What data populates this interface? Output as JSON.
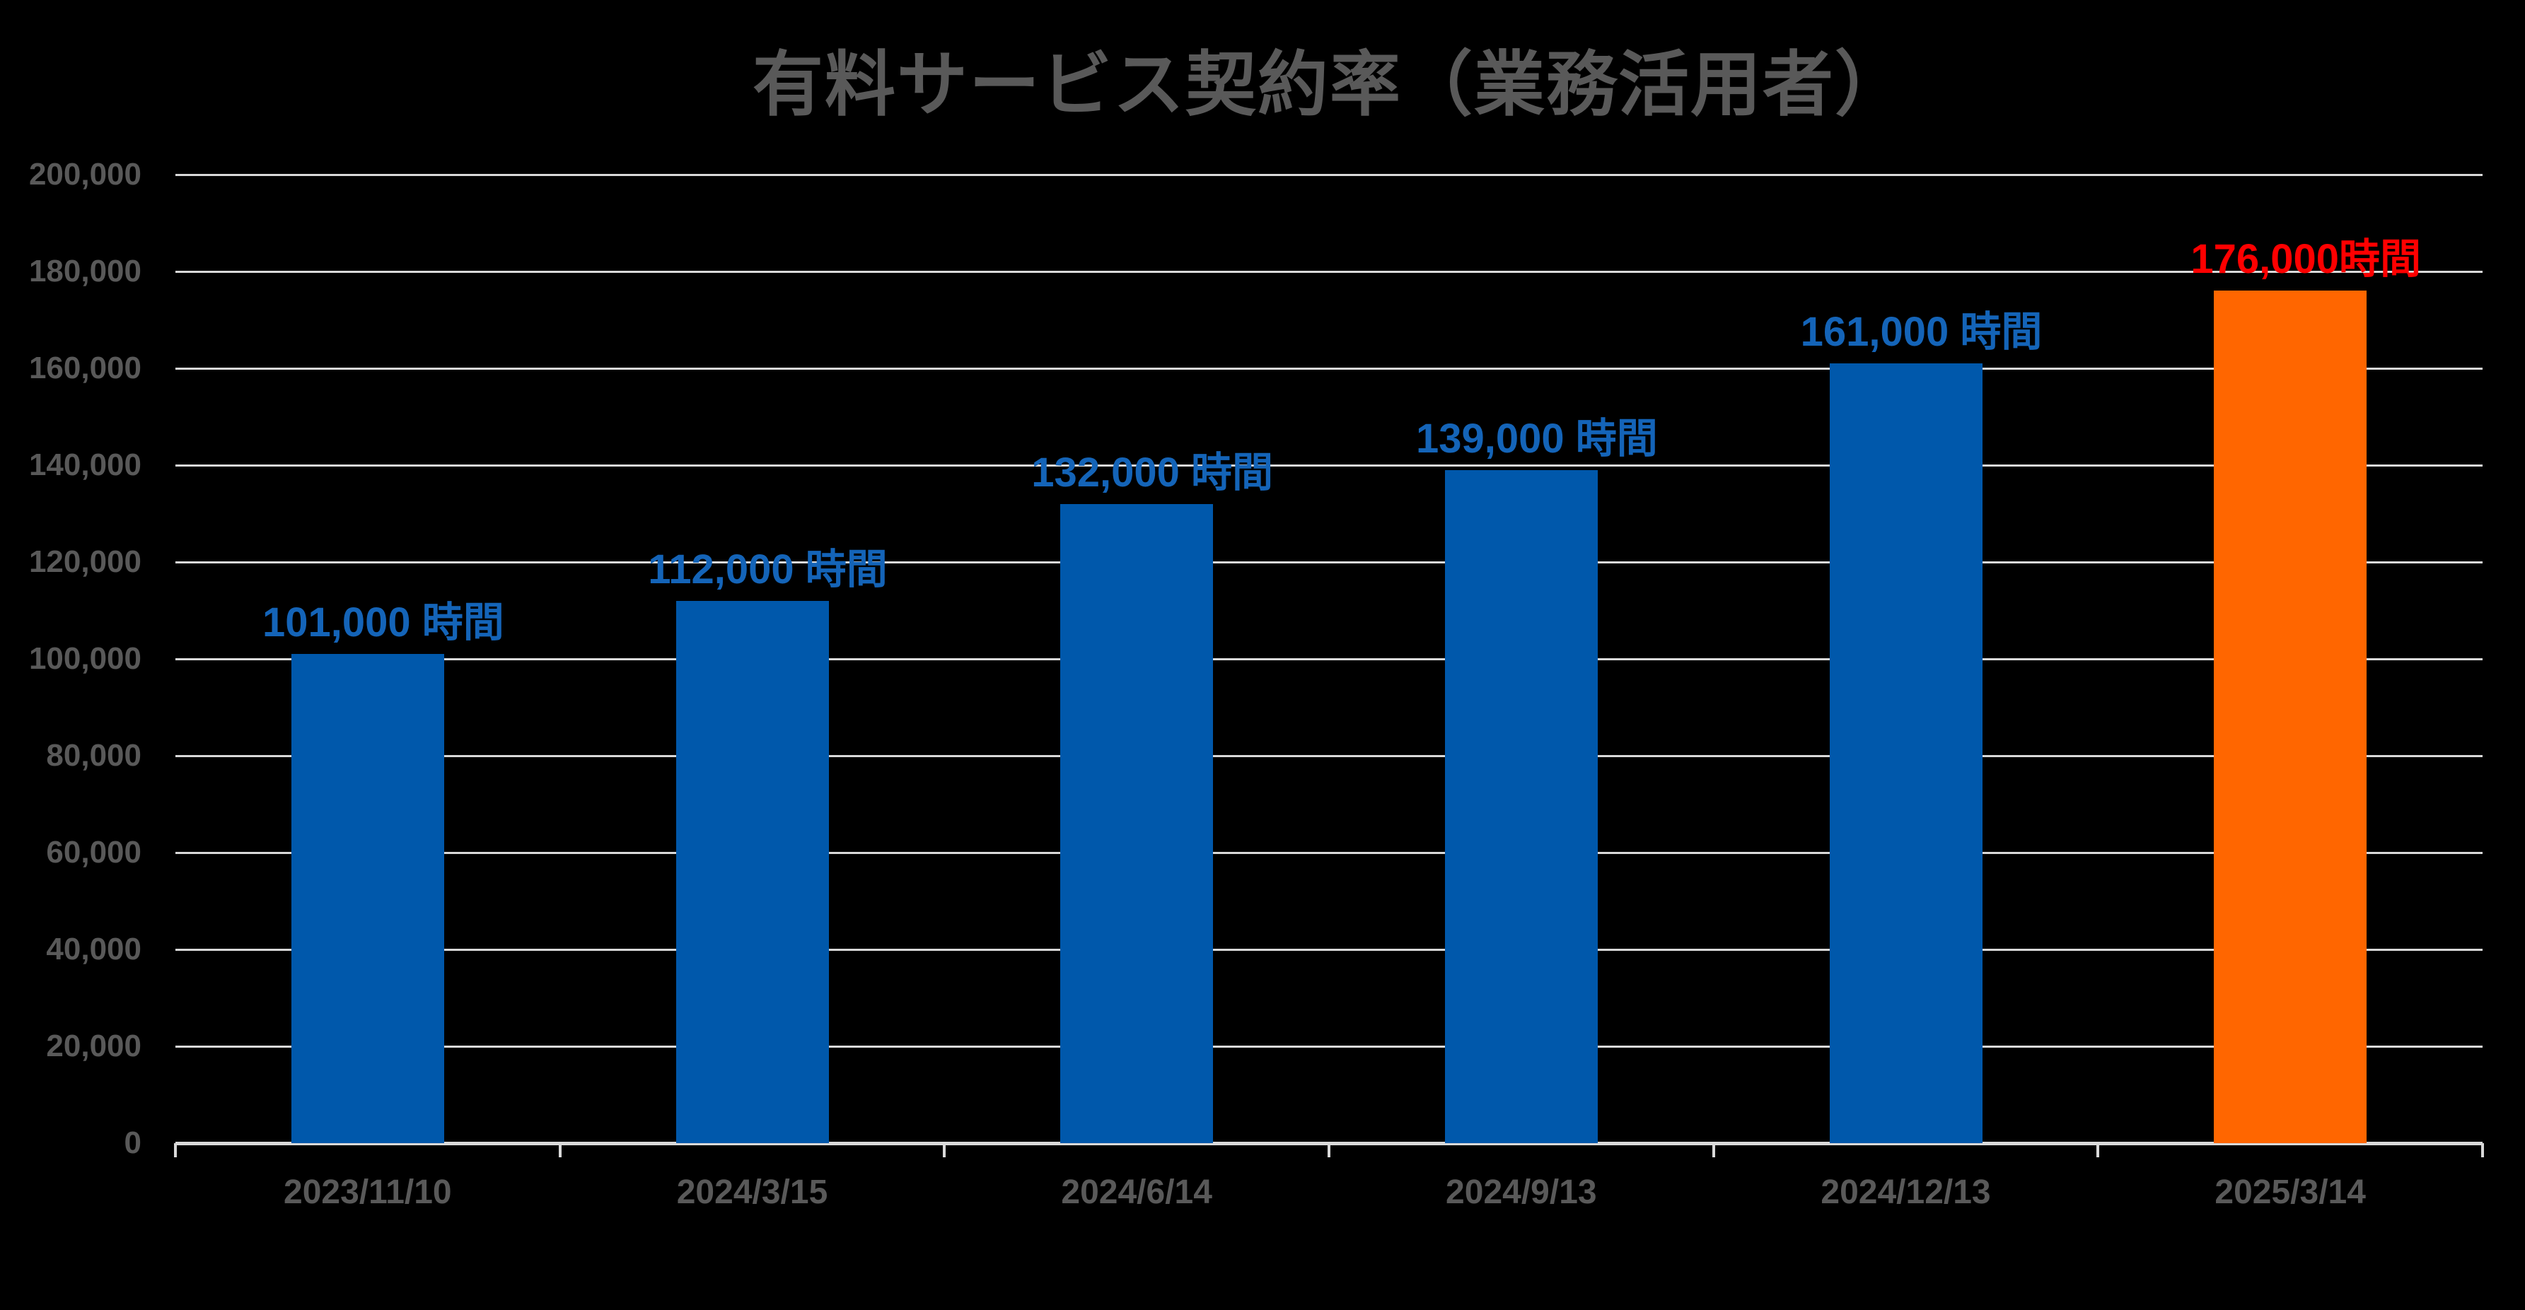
{
  "page": {
    "background_color": "#000000"
  },
  "chart_data": {
    "type": "bar",
    "title": "有料サービス契約率（業務活用者）",
    "title_color": "#595959",
    "xlabel": "",
    "ylabel": "",
    "unit": "時間",
    "categories": [
      "2023/11/10",
      "2024/3/15",
      "2024/6/14",
      "2024/9/13",
      "2024/12/13",
      "2025/3/14"
    ],
    "values": [
      101000,
      112000,
      132000,
      139000,
      161000,
      176000
    ],
    "bar_labels": [
      "101,000 時間",
      "112,000 時間",
      "132,000 時間",
      "139,000 時間",
      "161,000 時間",
      "176,000時間"
    ],
    "bar_colors": [
      "#0058AB",
      "#0058AB",
      "#0058AB",
      "#0058AB",
      "#0058AB",
      "#FF6600"
    ],
    "bar_label_colors": [
      "#1464B8",
      "#1464B8",
      "#1464B8",
      "#1464B8",
      "#1464B8",
      "#FF0000"
    ],
    "ylim": [
      0,
      200000
    ],
    "ytick_step": 20000,
    "ytick_labels": [
      "0",
      "20,000",
      "40,000",
      "60,000",
      "80,000",
      "100,000",
      "120,000",
      "140,000",
      "160,000",
      "180,000",
      "200,000"
    ],
    "grid": true,
    "gridline_color": "#D9D9D9",
    "axis_line_color": "#D9D9D9",
    "axis_text_color": "#595959",
    "legend_position": "none"
  }
}
